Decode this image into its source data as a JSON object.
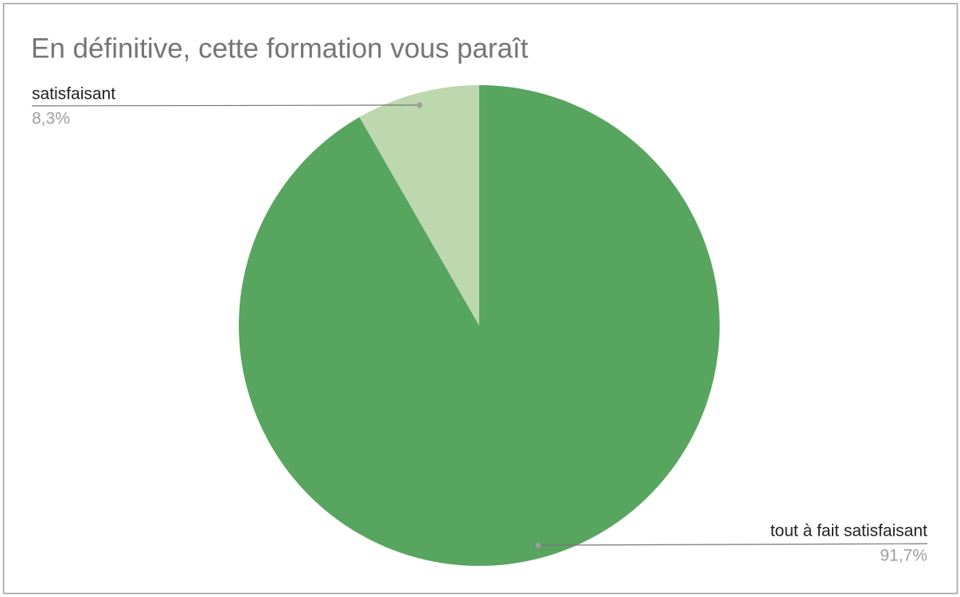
{
  "chart_data": {
    "type": "pie",
    "title": "En définitive, cette formation vous paraît",
    "categories": [
      "tout à fait satisfaisant",
      "satisfaisant"
    ],
    "values": [
      91.7,
      8.3
    ],
    "value_labels": [
      "91,7%",
      "8,3%"
    ],
    "colors": [
      "#57a55e",
      "#bdd7ae"
    ]
  }
}
